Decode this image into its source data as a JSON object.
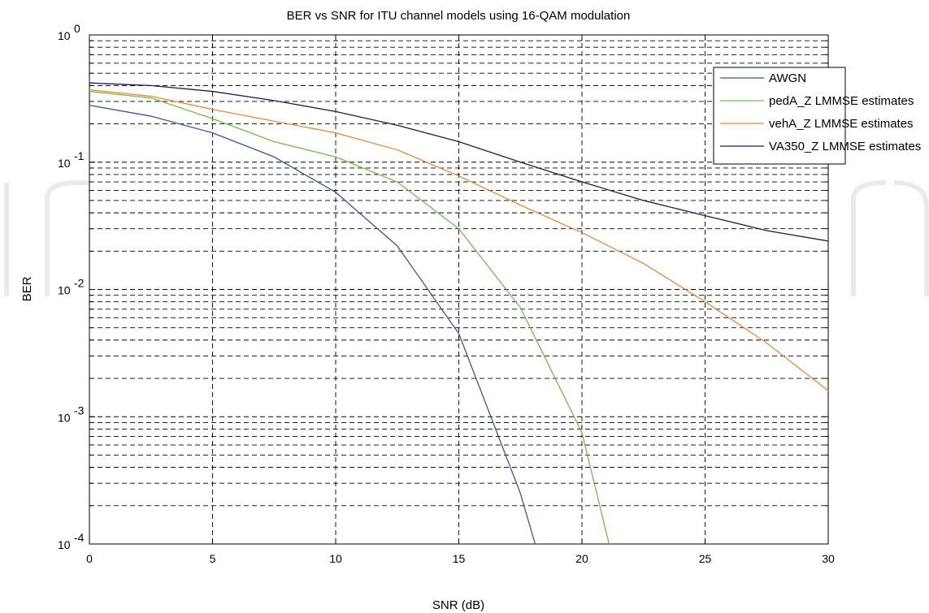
{
  "chart_data": {
    "type": "line",
    "title": "BER vs SNR for ITU channel models using 16-QAM modulation",
    "xlabel": "SNR (dB)",
    "ylabel": "BER",
    "xlim": [
      0,
      30
    ],
    "ylim": [
      0.0001,
      1
    ],
    "yscale": "log",
    "grid": true,
    "legend_position": "top-right",
    "x_ticks": [
      0,
      5,
      10,
      15,
      20,
      25,
      30
    ],
    "y_ticks": [
      {
        "value": 0.0001,
        "base": "10",
        "exp": "-4"
      },
      {
        "value": 0.001,
        "base": "10",
        "exp": "-3"
      },
      {
        "value": 0.01,
        "base": "10",
        "exp": "-2"
      },
      {
        "value": 0.1,
        "base": "10",
        "exp": "-1"
      },
      {
        "value": 1,
        "base": "10",
        "exp": "0"
      }
    ],
    "series": [
      {
        "name": "AWGN",
        "color": "#3a55a4",
        "x": [
          0,
          2.5,
          5,
          7.5,
          10,
          12.5,
          15,
          17.5,
          18.1
        ],
        "y": [
          0.28,
          0.23,
          0.17,
          0.11,
          0.058,
          0.022,
          0.0045,
          0.00025,
          0.0001
        ]
      },
      {
        "name": "pedA_Z LMMSE estimates",
        "color": "#6cc04a",
        "x": [
          0,
          2.5,
          5,
          7.5,
          10,
          12.5,
          15,
          17.5,
          20,
          21.1
        ],
        "y": [
          0.36,
          0.32,
          0.22,
          0.145,
          0.11,
          0.07,
          0.03,
          0.0072,
          0.00075,
          0.0001
        ]
      },
      {
        "name": "vehA_Z LMMSE estimates",
        "color": "#e8873a",
        "x": [
          0,
          2.5,
          5,
          7.5,
          10,
          12.5,
          15,
          17.5,
          20,
          22.5,
          25,
          27.5,
          30
        ],
        "y": [
          0.37,
          0.33,
          0.26,
          0.21,
          0.17,
          0.125,
          0.078,
          0.046,
          0.028,
          0.016,
          0.008,
          0.0038,
          0.0016
        ]
      },
      {
        "name": "VA350_Z LMMSE estimates",
        "color": "#1c1c5a",
        "x": [
          0,
          2.5,
          5,
          7.5,
          10,
          12.5,
          15,
          17.5,
          20,
          22.5,
          25,
          27.5,
          30
        ],
        "y": [
          0.42,
          0.4,
          0.36,
          0.305,
          0.25,
          0.195,
          0.145,
          0.1,
          0.07,
          0.05,
          0.038,
          0.029,
          0.024
        ]
      }
    ]
  }
}
